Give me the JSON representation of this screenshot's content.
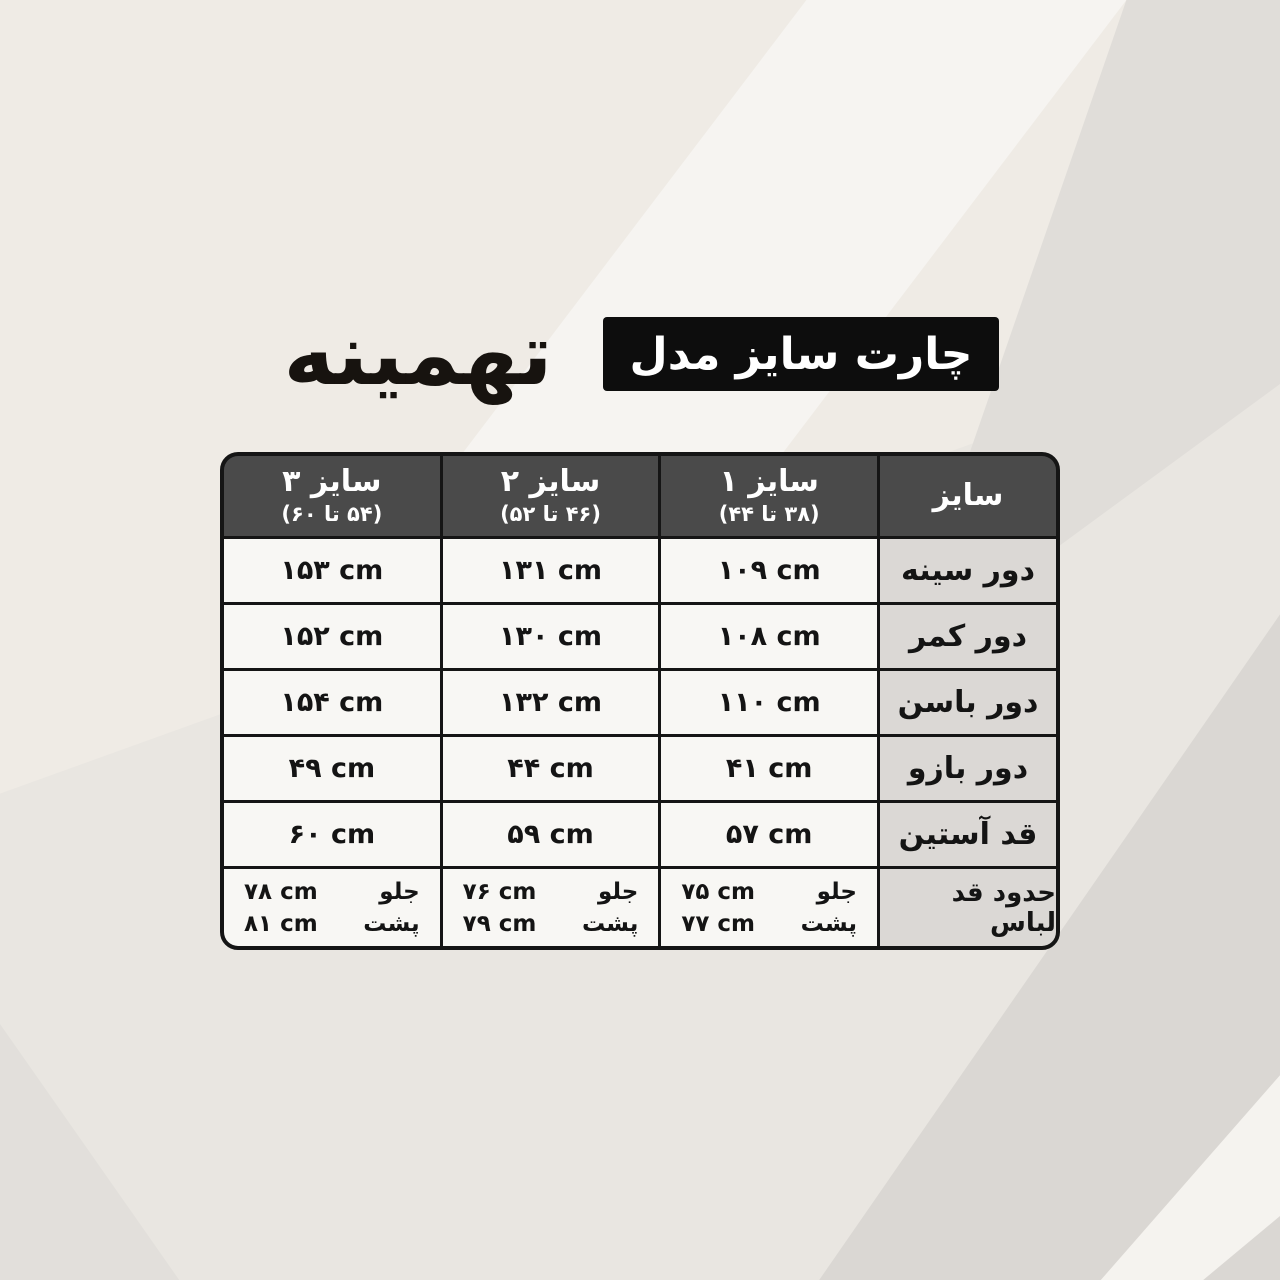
{
  "page": {
    "brand": "تهمینه",
    "title_box": "چارت سایز مدل"
  },
  "table": {
    "header": {
      "size_label": "سایز",
      "columns": [
        {
          "title": "سایز ۱",
          "range": "(۳۸ تا ۴۴)"
        },
        {
          "title": "سایز ۲",
          "range": "(۴۶ تا ۵۲)"
        },
        {
          "title": "سایز ۳",
          "range": "(۵۴ تا ۶۰)"
        }
      ]
    },
    "rows": [
      {
        "label": "دور سینه",
        "values": [
          "۱۰۹ cm",
          "۱۳۱ cm",
          "۱۵۳ cm"
        ]
      },
      {
        "label": "دور کمر",
        "values": [
          "۱۰۸ cm",
          "۱۳۰ cm",
          "۱۵۲ cm"
        ]
      },
      {
        "label": "دور باسن",
        "values": [
          "۱۱۰ cm",
          "۱۳۲ cm",
          "۱۵۴ cm"
        ]
      },
      {
        "label": "دور بازو",
        "values": [
          "۴۱ cm",
          "۴۴ cm",
          "۴۹ cm"
        ]
      },
      {
        "label": "قد آستین",
        "values": [
          "۵۷ cm",
          "۵۹ cm",
          "۶۰ cm"
        ]
      }
    ],
    "length_row": {
      "label": "حدود قد لباس",
      "front_label": "جلو",
      "back_label": "پشت",
      "cells": [
        {
          "front": "۷۵ cm",
          "back": "۷۷ cm"
        },
        {
          "front": "۷۶ cm",
          "back": "۷۹ cm"
        },
        {
          "front": "۷۸ cm",
          "back": "۸۱ cm"
        }
      ]
    }
  },
  "colors": {
    "background": "#efebe5",
    "header_bg": "#4a4a4a",
    "label_column_bg": "#dbd8d5",
    "cell_bg": "#f8f7f4",
    "table_border": "#151515",
    "title_box_bg": "#0d0d0d",
    "title_box_text": "#ffffff",
    "body_text": "#141414"
  }
}
